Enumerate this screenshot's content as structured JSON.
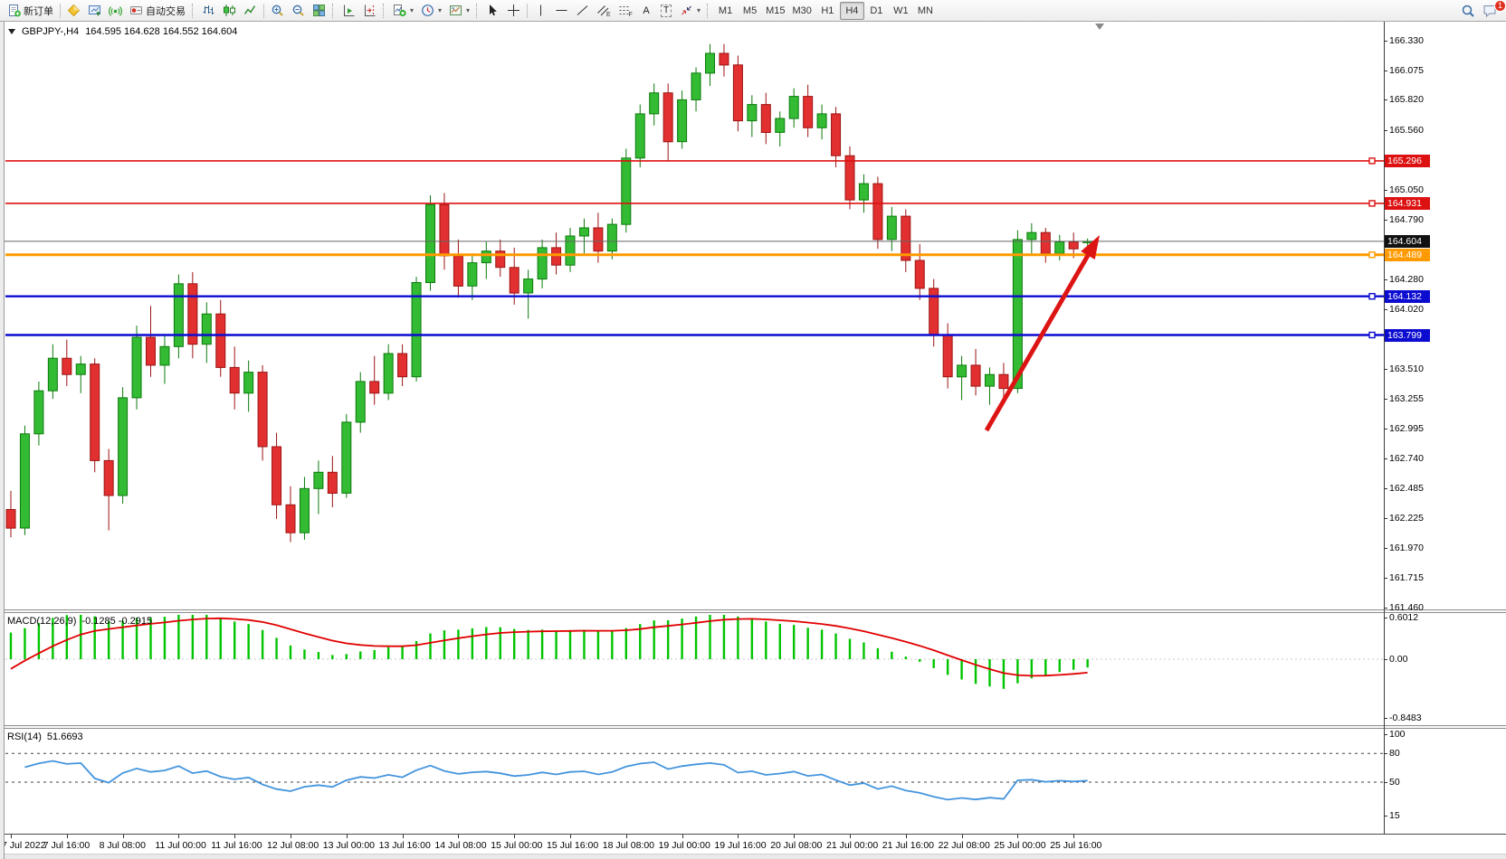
{
  "toolbar": {
    "new_order_label": "新订单",
    "autotrading_label": "自动交易",
    "text_tool_letter": "A",
    "label_tool_letter": "T",
    "channel_tool_letter": "E",
    "fibo_tool_letter": "F",
    "timeframes": [
      "M1",
      "M5",
      "M15",
      "M30",
      "H1",
      "H4",
      "D1",
      "W1",
      "MN"
    ],
    "active_timeframe": "H4",
    "chat_badge_count": "1"
  },
  "chart": {
    "title": "GBPJPY-,H4",
    "quote_ohlc": "164.595 164.628 164.552 164.604"
  },
  "price_axis": {
    "ticks": [
      "166.330",
      "166.075",
      "165.820",
      "165.560",
      "165.050",
      "164.790",
      "164.280",
      "164.020",
      "163.510",
      "163.255",
      "162.995",
      "162.740",
      "162.485",
      "162.225",
      "161.970",
      "161.715",
      "161.460"
    ],
    "badges": [
      {
        "label": "165.296",
        "bg": "#dd1111"
      },
      {
        "label": "164.931",
        "bg": "#dd1111"
      },
      {
        "label": "164.604",
        "bg": "#111111"
      },
      {
        "label": "164.489",
        "bg": "#ff9a00"
      },
      {
        "label": "164.132",
        "bg": "#0c0cd0"
      },
      {
        "label": "163.799",
        "bg": "#0c0cd0"
      }
    ]
  },
  "levels": [
    {
      "price": 165.296,
      "color": "#dd1111",
      "width": 1.6
    },
    {
      "price": 164.931,
      "color": "#dd1111",
      "width": 1.6
    },
    {
      "price": 164.489,
      "color": "#ff9a00",
      "width": 3
    },
    {
      "price": 164.132,
      "color": "#0c0cd0",
      "width": 2.4
    },
    {
      "price": 163.799,
      "color": "#0c0cd0",
      "width": 2.4
    }
  ],
  "current_price": {
    "value": 164.604,
    "line_color": "#666666"
  },
  "indicators": {
    "macd": {
      "label": "MACD(12,26,9)",
      "values": "-0.1285 -0.2915",
      "axis": [
        "0.6012",
        "0.00",
        "-0.8483"
      ]
    },
    "rsi": {
      "label": "RSI(14)",
      "value": "51.6693",
      "axis": [
        "100",
        "80",
        "50",
        "15"
      ],
      "level_lines": [
        80,
        50
      ]
    }
  },
  "time_axis": [
    "7 Jul 2022",
    "7 Jul 16:00",
    "8 Jul 08:00",
    "11 Jul 00:00",
    "11 Jul 16:00",
    "12 Jul 08:00",
    "13 Jul 00:00",
    "13 Jul 16:00",
    "14 Jul 08:00",
    "15 Jul 00:00",
    "15 Jul 16:00",
    "18 Jul 08:00",
    "19 Jul 00:00",
    "19 Jul 16:00",
    "20 Jul 08:00",
    "21 Jul 00:00",
    "21 Jul 16:00",
    "22 Jul 08:00",
    "25 Jul 00:00",
    "25 Jul 16:00"
  ],
  "chart_data": {
    "type": "candlestick",
    "symbol": "GBPJPY-",
    "timeframe": "H4",
    "visible_range": {
      "high": 166.49,
      "low": 161.44
    },
    "current_bar": {
      "open": 164.595,
      "high": 164.628,
      "low": 164.552,
      "close": 164.604
    },
    "candles_ohlc": [
      [
        162.3,
        162.46,
        162.06,
        162.14
      ],
      [
        162.14,
        163.02,
        162.08,
        162.95
      ],
      [
        162.95,
        163.4,
        162.85,
        163.32
      ],
      [
        163.32,
        163.72,
        163.25,
        163.6
      ],
      [
        163.6,
        163.76,
        163.36,
        163.46
      ],
      [
        163.46,
        163.62,
        163.3,
        163.55
      ],
      [
        163.55,
        163.6,
        162.62,
        162.72
      ],
      [
        162.72,
        162.82,
        162.12,
        162.42
      ],
      [
        162.42,
        163.35,
        162.35,
        163.26
      ],
      [
        163.26,
        163.88,
        163.16,
        163.78
      ],
      [
        163.78,
        164.05,
        163.44,
        163.54
      ],
      [
        163.54,
        163.8,
        163.38,
        163.7
      ],
      [
        163.7,
        164.32,
        163.6,
        164.24
      ],
      [
        164.24,
        164.34,
        163.6,
        163.72
      ],
      [
        163.72,
        164.08,
        163.56,
        163.98
      ],
      [
        163.98,
        164.1,
        163.44,
        163.52
      ],
      [
        163.52,
        163.7,
        163.16,
        163.3
      ],
      [
        163.3,
        163.58,
        163.14,
        163.48
      ],
      [
        163.48,
        163.54,
        162.72,
        162.84
      ],
      [
        162.84,
        162.96,
        162.22,
        162.34
      ],
      [
        162.34,
        162.5,
        162.02,
        162.1
      ],
      [
        162.1,
        162.58,
        162.04,
        162.48
      ],
      [
        162.48,
        162.72,
        162.26,
        162.62
      ],
      [
        162.62,
        162.76,
        162.32,
        162.44
      ],
      [
        162.44,
        163.12,
        162.4,
        163.05
      ],
      [
        163.05,
        163.48,
        162.96,
        163.4
      ],
      [
        163.4,
        163.62,
        163.2,
        163.3
      ],
      [
        163.3,
        163.72,
        163.24,
        163.64
      ],
      [
        163.64,
        163.72,
        163.36,
        163.44
      ],
      [
        163.44,
        164.3,
        163.4,
        164.25
      ],
      [
        164.25,
        165.0,
        164.18,
        164.92
      ],
      [
        164.92,
        165.02,
        164.36,
        164.48
      ],
      [
        164.48,
        164.62,
        164.12,
        164.22
      ],
      [
        164.22,
        164.5,
        164.1,
        164.42
      ],
      [
        164.42,
        164.6,
        164.28,
        164.52
      ],
      [
        164.52,
        164.62,
        164.3,
        164.38
      ],
      [
        164.38,
        164.55,
        164.06,
        164.16
      ],
      [
        164.16,
        164.36,
        163.94,
        164.28
      ],
      [
        164.28,
        164.62,
        164.2,
        164.55
      ],
      [
        164.55,
        164.68,
        164.32,
        164.4
      ],
      [
        164.4,
        164.72,
        164.34,
        164.65
      ],
      [
        164.65,
        164.8,
        164.5,
        164.72
      ],
      [
        164.72,
        164.85,
        164.42,
        164.52
      ],
      [
        164.52,
        164.8,
        164.45,
        164.75
      ],
      [
        164.75,
        165.4,
        164.68,
        165.32
      ],
      [
        165.32,
        165.78,
        165.24,
        165.7
      ],
      [
        165.7,
        165.96,
        165.6,
        165.88
      ],
      [
        165.88,
        165.96,
        165.3,
        165.46
      ],
      [
        165.46,
        165.9,
        165.4,
        165.82
      ],
      [
        165.82,
        166.1,
        165.72,
        166.05
      ],
      [
        166.05,
        166.3,
        165.94,
        166.22
      ],
      [
        166.22,
        166.3,
        166.02,
        166.12
      ],
      [
        166.12,
        166.2,
        165.55,
        165.64
      ],
      [
        165.64,
        165.86,
        165.5,
        165.78
      ],
      [
        165.78,
        165.88,
        165.44,
        165.54
      ],
      [
        165.54,
        165.72,
        165.42,
        165.66
      ],
      [
        165.66,
        165.92,
        165.58,
        165.85
      ],
      [
        165.85,
        165.95,
        165.5,
        165.58
      ],
      [
        165.58,
        165.78,
        165.48,
        165.7
      ],
      [
        165.7,
        165.76,
        165.24,
        165.34
      ],
      [
        165.34,
        165.42,
        164.88,
        164.96
      ],
      [
        164.96,
        165.18,
        164.85,
        165.1
      ],
      [
        165.1,
        165.16,
        164.54,
        164.62
      ],
      [
        164.62,
        164.9,
        164.52,
        164.82
      ],
      [
        164.82,
        164.88,
        164.34,
        164.44
      ],
      [
        164.44,
        164.58,
        164.1,
        164.2
      ],
      [
        164.2,
        164.28,
        163.7,
        163.8
      ],
      [
        163.8,
        163.9,
        163.34,
        163.44
      ],
      [
        163.44,
        163.62,
        163.24,
        163.54
      ],
      [
        163.54,
        163.68,
        163.28,
        163.36
      ],
      [
        163.36,
        163.52,
        163.2,
        163.46
      ],
      [
        163.46,
        163.56,
        163.26,
        163.34
      ],
      [
        163.34,
        164.7,
        163.3,
        164.62
      ],
      [
        164.62,
        164.76,
        164.5,
        164.68
      ],
      [
        164.68,
        164.72,
        164.42,
        164.5
      ],
      [
        164.5,
        164.66,
        164.44,
        164.6
      ],
      [
        164.6,
        164.68,
        164.46,
        164.54
      ],
      [
        164.595,
        164.628,
        164.552,
        164.604
      ]
    ],
    "colors": {
      "up": "#33bb33",
      "up_dark": "#0c7a0c",
      "down": "#e23030",
      "down_dark": "#9c1313",
      "macd_hist": "#00c400",
      "macd_signal": "#e00000",
      "rsi": "#4394dd",
      "arrow": "#dd1414"
    }
  },
  "annotations": {
    "arrow_from": [
      1090,
      452
    ],
    "arrow_to": [
      1215,
      236
    ]
  }
}
